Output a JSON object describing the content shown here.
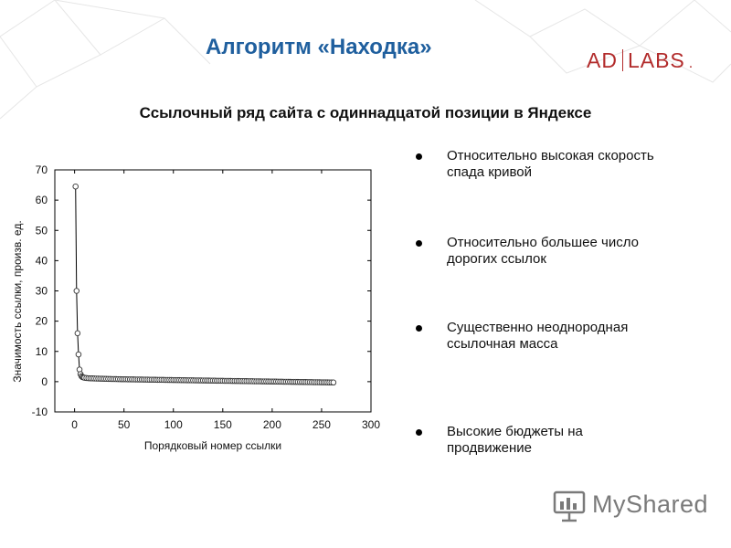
{
  "header": {
    "title": "Алгоритм «Находка»",
    "logo_left": "AD",
    "logo_right": "LABS",
    "logo_dot": "."
  },
  "subtitle": "Ссылочный ряд сайта с одиннадцатой позиции в Яндексе",
  "bullets": [
    "Относительно высокая скорость спада кривой",
    "Относительно большее число дорогих ссылок",
    "Существенно неоднородная ссылочная масса",
    "Высокие бюджеты на продвижение"
  ],
  "watermark": {
    "text": "MyShared",
    "icon": "presentation-board-icon"
  },
  "colors": {
    "title": "#1f5f9e",
    "logo": "#b22b2b",
    "text": "#111111",
    "watermark": "#7a7a7a"
  },
  "chart_data": {
    "type": "scatter",
    "xlabel": "Порядковый номер ссылки",
    "ylabel": "Значимость ссылки, произв. ед.",
    "xlim": [
      -20,
      300
    ],
    "ylim": [
      -10,
      70
    ],
    "xticks": [
      0,
      50,
      100,
      150,
      200,
      250,
      300
    ],
    "yticks": [
      -10,
      0,
      10,
      20,
      30,
      40,
      50,
      60,
      70
    ],
    "grid": false,
    "connected": true,
    "x": [
      1,
      2,
      3,
      4,
      5,
      6,
      7,
      8,
      9,
      10,
      12,
      14,
      16,
      18,
      20,
      22,
      24,
      26,
      28,
      30,
      32,
      34,
      36,
      38,
      40,
      42,
      44,
      46,
      48,
      50,
      52,
      54,
      56,
      58,
      60,
      62,
      64,
      66,
      68,
      70,
      72,
      74,
      76,
      78,
      80,
      82,
      84,
      86,
      88,
      90,
      92,
      94,
      96,
      98,
      100,
      102,
      104,
      106,
      108,
      110,
      112,
      114,
      116,
      118,
      120,
      122,
      124,
      126,
      128,
      130,
      132,
      134,
      136,
      138,
      140,
      142,
      144,
      146,
      148,
      150,
      152,
      154,
      156,
      158,
      160,
      162,
      164,
      166,
      168,
      170,
      172,
      174,
      176,
      178,
      180,
      182,
      184,
      186,
      188,
      190,
      192,
      194,
      196,
      198,
      200,
      202,
      204,
      206,
      208,
      210,
      212,
      214,
      216,
      218,
      220,
      222,
      224,
      226,
      228,
      230,
      232,
      234,
      236,
      238,
      240,
      242,
      244,
      246,
      248,
      250,
      252,
      254,
      256,
      258,
      260,
      262
    ],
    "y": [
      64.5,
      30,
      16,
      9,
      4,
      2.5,
      1.8,
      1.5,
      1.4,
      1.3,
      1.2,
      1.15,
      1.1,
      1.08,
      1.05,
      1.03,
      1.01,
      0.99,
      0.97,
      0.95,
      0.93,
      0.91,
      0.9,
      0.88,
      0.87,
      0.85,
      0.84,
      0.82,
      0.81,
      0.8,
      0.79,
      0.77,
      0.76,
      0.75,
      0.74,
      0.73,
      0.72,
      0.71,
      0.7,
      0.69,
      0.68,
      0.67,
      0.66,
      0.65,
      0.64,
      0.63,
      0.62,
      0.61,
      0.6,
      0.59,
      0.58,
      0.57,
      0.56,
      0.55,
      0.54,
      0.53,
      0.52,
      0.51,
      0.5,
      0.49,
      0.48,
      0.47,
      0.46,
      0.45,
      0.44,
      0.43,
      0.42,
      0.41,
      0.4,
      0.39,
      0.38,
      0.37,
      0.36,
      0.35,
      0.34,
      0.33,
      0.32,
      0.31,
      0.3,
      0.29,
      0.28,
      0.27,
      0.26,
      0.25,
      0.24,
      0.23,
      0.22,
      0.21,
      0.2,
      0.19,
      0.18,
      0.17,
      0.16,
      0.15,
      0.14,
      0.13,
      0.12,
      0.11,
      0.1,
      0.09,
      0.08,
      0.07,
      0.06,
      0.05,
      0.04,
      0.03,
      0.02,
      0.01,
      0.0,
      -0.01,
      -0.02,
      -0.03,
      -0.04,
      -0.05,
      -0.06,
      -0.07,
      -0.08,
      -0.09,
      -0.1,
      -0.11,
      -0.12,
      -0.13,
      -0.14,
      -0.15,
      -0.16,
      -0.17,
      -0.18,
      -0.19,
      -0.2,
      -0.21,
      -0.22,
      -0.23,
      -0.24,
      -0.25,
      -0.26,
      -0.27
    ]
  }
}
